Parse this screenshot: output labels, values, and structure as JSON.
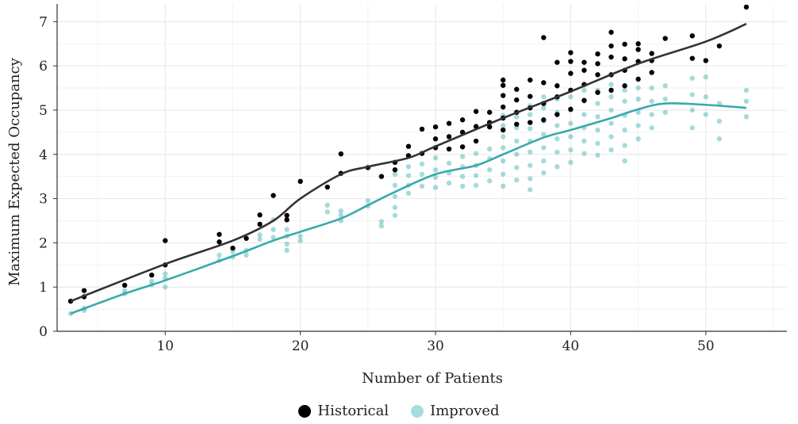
{
  "chart_data": {
    "type": "scatter",
    "title": "",
    "xlabel": "Number of Patients",
    "ylabel": "Maximum Expected Occupancy",
    "xlim": [
      2,
      56
    ],
    "ylim": [
      0,
      7.4
    ],
    "xticks": [
      10,
      20,
      30,
      40,
      50
    ],
    "yticks": [
      0,
      1,
      2,
      3,
      4,
      5,
      6,
      7
    ],
    "grid": true,
    "legend_position": "bottom",
    "series": [
      {
        "name": "Historical",
        "color": "#000000",
        "trend_color": "#333333",
        "points": [
          [
            3,
            0.68
          ],
          [
            4,
            0.78
          ],
          [
            4,
            0.92
          ],
          [
            7,
            1.04
          ],
          [
            9,
            1.27
          ],
          [
            10,
            1.5
          ],
          [
            10,
            2.05
          ],
          [
            14,
            2.02
          ],
          [
            14,
            2.19
          ],
          [
            15,
            1.88
          ],
          [
            16,
            2.1
          ],
          [
            17,
            2.42
          ],
          [
            17,
            2.63
          ],
          [
            18,
            3.07
          ],
          [
            19,
            2.52
          ],
          [
            19,
            2.62
          ],
          [
            20,
            3.39
          ],
          [
            22,
            3.26
          ],
          [
            23,
            3.57
          ],
          [
            23,
            4.01
          ],
          [
            25,
            3.7
          ],
          [
            26,
            3.5
          ],
          [
            27,
            3.65
          ],
          [
            27,
            3.82
          ],
          [
            28,
            3.97
          ],
          [
            28,
            4.18
          ],
          [
            29,
            4.02
          ],
          [
            29,
            4.57
          ],
          [
            30,
            4.15
          ],
          [
            30,
            4.35
          ],
          [
            30,
            4.62
          ],
          [
            31,
            4.12
          ],
          [
            31,
            4.4
          ],
          [
            31,
            4.7
          ],
          [
            32,
            4.17
          ],
          [
            32,
            4.5
          ],
          [
            32,
            4.78
          ],
          [
            33,
            4.3
          ],
          [
            33,
            4.63
          ],
          [
            33,
            4.97
          ],
          [
            34,
            4.62
          ],
          [
            34,
            4.72
          ],
          [
            34,
            4.95
          ],
          [
            35,
            4.55
          ],
          [
            35,
            4.82
          ],
          [
            35,
            5.07
          ],
          [
            35,
            5.33
          ],
          [
            35,
            5.56
          ],
          [
            35,
            5.68
          ],
          [
            36,
            4.68
          ],
          [
            36,
            4.95
          ],
          [
            36,
            5.23
          ],
          [
            36,
            5.47
          ],
          [
            37,
            4.72
          ],
          [
            37,
            5.05
          ],
          [
            37,
            5.31
          ],
          [
            37,
            5.68
          ],
          [
            38,
            4.78
          ],
          [
            38,
            5.15
          ],
          [
            38,
            5.62
          ],
          [
            38,
            6.64
          ],
          [
            39,
            4.9
          ],
          [
            39,
            5.3
          ],
          [
            39,
            5.55
          ],
          [
            39,
            6.08
          ],
          [
            40,
            5.02
          ],
          [
            40,
            5.45
          ],
          [
            40,
            5.83
          ],
          [
            40,
            6.1
          ],
          [
            40,
            6.3
          ],
          [
            41,
            5.22
          ],
          [
            41,
            5.58
          ],
          [
            41,
            5.9
          ],
          [
            41,
            6.08
          ],
          [
            42,
            5.4
          ],
          [
            42,
            5.8
          ],
          [
            42,
            6.05
          ],
          [
            42,
            6.27
          ],
          [
            43,
            5.45
          ],
          [
            43,
            5.8
          ],
          [
            43,
            6.2
          ],
          [
            43,
            6.45
          ],
          [
            43,
            6.76
          ],
          [
            44,
            5.55
          ],
          [
            44,
            5.9
          ],
          [
            44,
            6.16
          ],
          [
            44,
            6.49
          ],
          [
            45,
            5.7
          ],
          [
            45,
            6.1
          ],
          [
            45,
            6.37
          ],
          [
            45,
            6.5
          ],
          [
            46,
            5.85
          ],
          [
            46,
            6.12
          ],
          [
            46,
            6.28
          ],
          [
            47,
            6.62
          ],
          [
            49,
            6.17
          ],
          [
            49,
            6.68
          ],
          [
            50,
            6.12
          ],
          [
            51,
            6.45
          ],
          [
            53,
            7.33
          ]
        ],
        "trend": [
          [
            3,
            0.68
          ],
          [
            10,
            1.52
          ],
          [
            15,
            2.05
          ],
          [
            18,
            2.5
          ],
          [
            20,
            3.0
          ],
          [
            23,
            3.55
          ],
          [
            25,
            3.72
          ],
          [
            28,
            3.92
          ],
          [
            30,
            4.18
          ],
          [
            35,
            4.82
          ],
          [
            40,
            5.42
          ],
          [
            45,
            6.05
          ],
          [
            50,
            6.55
          ],
          [
            53,
            6.95
          ]
        ]
      },
      {
        "name": "Improved",
        "color": "#3aaeb0",
        "trend_color": "#38a9ab",
        "points": [
          [
            3,
            0.4
          ],
          [
            4,
            0.47
          ],
          [
            4,
            0.52
          ],
          [
            7,
            0.85
          ],
          [
            7,
            0.92
          ],
          [
            9,
            1.05
          ],
          [
            9,
            1.13
          ],
          [
            10,
            1.0
          ],
          [
            10,
            1.2
          ],
          [
            10,
            1.3
          ],
          [
            14,
            1.6
          ],
          [
            14,
            1.72
          ],
          [
            15,
            1.68
          ],
          [
            15,
            1.8
          ],
          [
            16,
            1.72
          ],
          [
            16,
            1.83
          ],
          [
            17,
            2.08
          ],
          [
            17,
            2.18
          ],
          [
            18,
            2.12
          ],
          [
            18,
            2.3
          ],
          [
            18,
            2.52
          ],
          [
            19,
            1.83
          ],
          [
            19,
            1.97
          ],
          [
            19,
            2.15
          ],
          [
            19,
            2.3
          ],
          [
            20,
            2.05
          ],
          [
            20,
            2.15
          ],
          [
            22,
            2.7
          ],
          [
            22,
            2.85
          ],
          [
            23,
            2.5
          ],
          [
            23,
            2.62
          ],
          [
            23,
            2.72
          ],
          [
            25,
            2.83
          ],
          [
            25,
            2.95
          ],
          [
            26,
            2.38
          ],
          [
            26,
            2.48
          ],
          [
            27,
            2.62
          ],
          [
            27,
            2.8
          ],
          [
            27,
            3.05
          ],
          [
            27,
            3.3
          ],
          [
            27,
            3.55
          ],
          [
            28,
            3.12
          ],
          [
            28,
            3.3
          ],
          [
            28,
            3.52
          ],
          [
            28,
            3.72
          ],
          [
            29,
            3.28
          ],
          [
            29,
            3.55
          ],
          [
            29,
            3.78
          ],
          [
            30,
            3.25
          ],
          [
            30,
            3.48
          ],
          [
            30,
            3.65
          ],
          [
            30,
            3.92
          ],
          [
            31,
            3.35
          ],
          [
            31,
            3.58
          ],
          [
            31,
            3.8
          ],
          [
            32,
            3.28
          ],
          [
            32,
            3.5
          ],
          [
            32,
            3.72
          ],
          [
            32,
            3.95
          ],
          [
            33,
            3.3
          ],
          [
            33,
            3.52
          ],
          [
            33,
            3.75
          ],
          [
            33,
            4.02
          ],
          [
            34,
            3.4
          ],
          [
            34,
            3.65
          ],
          [
            34,
            3.9
          ],
          [
            34,
            4.12
          ],
          [
            35,
            3.28
          ],
          [
            35,
            3.55
          ],
          [
            35,
            3.85
          ],
          [
            35,
            4.15
          ],
          [
            35,
            4.4
          ],
          [
            35,
            4.65
          ],
          [
            35,
            4.88
          ],
          [
            36,
            3.42
          ],
          [
            36,
            3.7
          ],
          [
            36,
            4.0
          ],
          [
            36,
            4.3
          ],
          [
            36,
            4.6
          ],
          [
            36,
            4.85
          ],
          [
            37,
            3.2
          ],
          [
            37,
            3.45
          ],
          [
            37,
            3.75
          ],
          [
            37,
            4.05
          ],
          [
            37,
            4.3
          ],
          [
            37,
            4.58
          ],
          [
            37,
            4.9
          ],
          [
            37,
            5.1
          ],
          [
            38,
            3.58
          ],
          [
            38,
            3.85
          ],
          [
            38,
            4.15
          ],
          [
            38,
            4.45
          ],
          [
            38,
            4.75
          ],
          [
            38,
            5.05
          ],
          [
            38,
            5.3
          ],
          [
            39,
            3.72
          ],
          [
            39,
            4.05
          ],
          [
            39,
            4.35
          ],
          [
            39,
            4.65
          ],
          [
            39,
            4.95
          ],
          [
            39,
            5.25
          ],
          [
            40,
            3.82
          ],
          [
            40,
            4.1
          ],
          [
            40,
            4.4
          ],
          [
            40,
            4.7
          ],
          [
            40,
            5.0
          ],
          [
            40,
            5.3
          ],
          [
            41,
            4.02
          ],
          [
            41,
            4.3
          ],
          [
            41,
            4.6
          ],
          [
            41,
            4.9
          ],
          [
            41,
            5.2
          ],
          [
            41,
            5.45
          ],
          [
            42,
            3.98
          ],
          [
            42,
            4.25
          ],
          [
            42,
            4.55
          ],
          [
            42,
            4.85
          ],
          [
            42,
            5.15
          ],
          [
            42,
            5.45
          ],
          [
            43,
            4.1
          ],
          [
            43,
            4.4
          ],
          [
            43,
            4.7
          ],
          [
            43,
            5.0
          ],
          [
            43,
            5.3
          ],
          [
            43,
            5.58
          ],
          [
            44,
            3.85
          ],
          [
            44,
            4.2
          ],
          [
            44,
            4.55
          ],
          [
            44,
            4.88
          ],
          [
            44,
            5.2
          ],
          [
            44,
            5.45
          ],
          [
            45,
            4.35
          ],
          [
            45,
            4.65
          ],
          [
            45,
            4.95
          ],
          [
            45,
            5.25
          ],
          [
            45,
            5.5
          ],
          [
            46,
            4.6
          ],
          [
            46,
            4.9
          ],
          [
            46,
            5.2
          ],
          [
            46,
            5.5
          ],
          [
            47,
            4.95
          ],
          [
            47,
            5.25
          ],
          [
            47,
            5.55
          ],
          [
            49,
            4.6
          ],
          [
            49,
            5.0
          ],
          [
            49,
            5.35
          ],
          [
            49,
            5.72
          ],
          [
            50,
            4.9
          ],
          [
            50,
            5.3
          ],
          [
            50,
            5.75
          ],
          [
            51,
            4.35
          ],
          [
            51,
            4.75
          ],
          [
            51,
            5.15
          ],
          [
            53,
            4.85
          ],
          [
            53,
            5.2
          ],
          [
            53,
            5.45
          ]
        ],
        "trend": [
          [
            3,
            0.4
          ],
          [
            7,
            0.85
          ],
          [
            10,
            1.15
          ],
          [
            15,
            1.7
          ],
          [
            18,
            2.05
          ],
          [
            20,
            2.25
          ],
          [
            23,
            2.55
          ],
          [
            25,
            2.85
          ],
          [
            27,
            3.15
          ],
          [
            30,
            3.55
          ],
          [
            33,
            3.75
          ],
          [
            35,
            4.0
          ],
          [
            38,
            4.38
          ],
          [
            40,
            4.55
          ],
          [
            43,
            4.82
          ],
          [
            45,
            5.02
          ],
          [
            47,
            5.15
          ],
          [
            50,
            5.12
          ],
          [
            53,
            5.05
          ]
        ]
      }
    ]
  }
}
